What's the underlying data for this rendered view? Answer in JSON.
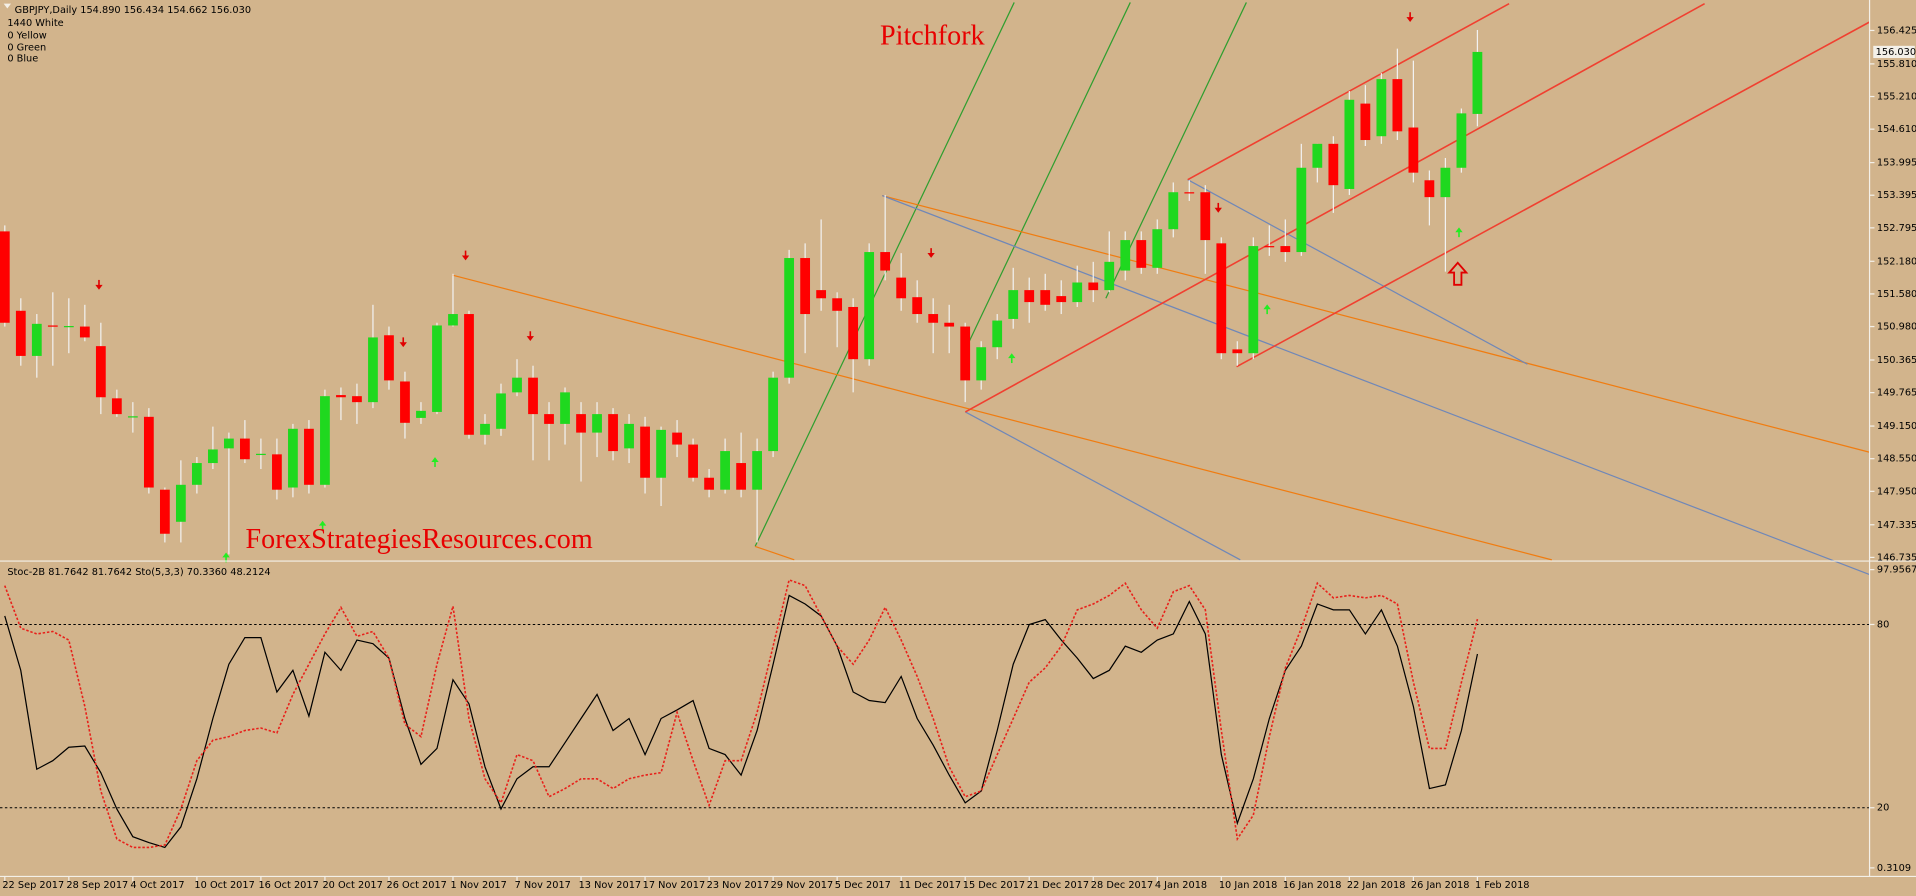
{
  "chart_data": [
    {
      "type": "candlestick",
      "title": "Pitchfork",
      "watermark": "ForexStrategiesResources.com",
      "header": "GBPJPY,Daily  154.890 156.434 154.662 156.030",
      "info_lines": [
        "1440 White",
        "0 Yellow",
        "0 Green",
        "0 Blue"
      ],
      "up_color": "#1fd81f",
      "down_color": "#ff0000",
      "wick_color": "#f2f2f2",
      "xlim": [
        -0.3,
        116.5
      ],
      "ylim": [
        146.69,
        156.985
      ],
      "yticks": [
        156.425,
        {
          "value": 155.81,
          "label": "155.810"
        },
        {
          "value": 155.21,
          "label": "155.210"
        },
        {
          "value": 154.61,
          "label": "154.610"
        },
        153.995,
        153.395,
        152.795,
        {
          "value": 152.18,
          "label": "152.180"
        },
        {
          "value": 151.58,
          "label": "151.580"
        },
        {
          "value": 150.98,
          "label": "150.980"
        },
        150.365,
        149.765,
        {
          "value": 149.15,
          "label": "149.150"
        },
        {
          "value": 148.55,
          "label": "148.550"
        },
        {
          "value": 147.95,
          "label": "147.950"
        },
        147.335,
        146.735
      ],
      "last_price": {
        "value": 156.03,
        "label": "156.030"
      },
      "open": [
        152.73,
        151.27,
        150.44,
        151.0,
        150.98,
        150.98,
        150.62,
        149.66,
        149.32,
        149.32,
        147.98,
        147.39,
        148.07,
        148.47,
        148.74,
        148.92,
        148.63,
        148.63,
        148.02,
        149.1,
        148.07,
        149.72,
        149.7,
        149.59,
        150.82,
        149.97,
        149.3,
        149.41,
        151.0,
        151.21,
        148.99,
        149.1,
        149.77,
        150.04,
        149.37,
        149.19,
        149.37,
        149.03,
        149.37,
        148.74,
        149.14,
        148.2,
        149.03,
        148.81,
        148.2,
        147.98,
        148.47,
        147.98,
        148.69,
        150.04,
        152.24,
        151.65,
        151.5,
        151.34,
        150.38,
        152.35,
        151.88,
        151.52,
        151.21,
        151.05,
        150.98,
        149.99,
        150.6,
        151.12,
        151.65,
        151.65,
        151.54,
        151.43,
        151.79,
        151.65,
        152.01,
        152.57,
        152.06,
        152.77,
        153.45,
        153.45,
        152.51,
        150.56,
        150.49,
        152.46,
        152.46,
        152.35,
        153.9,
        154.34,
        153.51,
        155.08,
        154.48,
        155.53,
        154.64,
        153.67,
        153.36,
        153.9,
        154.89
      ],
      "high": [
        152.84,
        151.5,
        151.21,
        151.61,
        151.5,
        151.38,
        151.05,
        149.82,
        149.59,
        149.48,
        148.02,
        148.52,
        148.58,
        149.14,
        149.03,
        149.26,
        148.92,
        148.92,
        149.19,
        149.26,
        149.82,
        149.86,
        149.93,
        151.38,
        150.98,
        150.15,
        149.59,
        151.05,
        151.95,
        151.27,
        149.37,
        149.93,
        150.38,
        150.26,
        149.59,
        149.86,
        149.59,
        149.59,
        149.48,
        149.37,
        149.32,
        149.14,
        149.26,
        148.92,
        148.36,
        148.92,
        149.03,
        148.92,
        150.15,
        152.39,
        152.51,
        152.95,
        151.61,
        151.5,
        152.51,
        153.4,
        152.33,
        151.83,
        151.5,
        151.38,
        151.05,
        150.71,
        151.21,
        152.06,
        151.88,
        151.95,
        151.83,
        152.1,
        152.17,
        152.73,
        152.73,
        152.73,
        152.95,
        153.63,
        153.67,
        153.58,
        152.62,
        150.71,
        152.62,
        152.84,
        152.95,
        154.34,
        154.34,
        154.48,
        155.31,
        155.42,
        155.64,
        156.09,
        155.87,
        153.85,
        154.08,
        154.99,
        156.434
      ],
      "low": [
        150.98,
        150.26,
        150.04,
        150.26,
        150.49,
        150.71,
        149.37,
        149.32,
        149.03,
        147.91,
        147.01,
        147.01,
        147.91,
        148.36,
        146.79,
        148.47,
        148.36,
        147.8,
        147.84,
        147.91,
        148.02,
        149.26,
        149.19,
        149.48,
        149.82,
        148.92,
        149.19,
        149.37,
        150.98,
        148.92,
        148.81,
        148.97,
        149.7,
        148.52,
        148.52,
        148.81,
        148.13,
        148.58,
        148.52,
        148.47,
        147.91,
        147.68,
        148.58,
        148.13,
        147.84,
        147.91,
        147.84,
        147.01,
        148.58,
        149.93,
        150.49,
        151.27,
        150.6,
        149.77,
        150.26,
        151.83,
        151.27,
        151.05,
        150.49,
        150.49,
        149.59,
        149.82,
        150.38,
        150.94,
        151.05,
        151.27,
        151.21,
        151.34,
        151.43,
        151.61,
        151.83,
        151.95,
        151.95,
        152.62,
        153.29,
        151.95,
        150.38,
        150.26,
        150.38,
        152.28,
        152.17,
        152.28,
        153.63,
        153.07,
        153.4,
        154.3,
        154.34,
        154.41,
        153.63,
        152.84,
        151.99,
        153.81,
        154.662
      ],
      "close": [
        151.05,
        150.44,
        151.03,
        150.99,
        150.99,
        150.78,
        149.68,
        149.37,
        149.33,
        148.02,
        147.17,
        148.07,
        148.47,
        148.72,
        148.92,
        148.54,
        148.64,
        147.98,
        149.1,
        148.07,
        149.7,
        149.68,
        149.59,
        150.78,
        149.99,
        149.21,
        149.43,
        151.0,
        151.21,
        148.99,
        149.19,
        149.75,
        150.04,
        149.37,
        149.19,
        149.77,
        149.03,
        149.37,
        148.69,
        149.19,
        148.2,
        149.08,
        148.81,
        148.2,
        147.98,
        148.69,
        147.98,
        148.69,
        150.04,
        152.24,
        151.21,
        151.5,
        151.27,
        150.38,
        152.35,
        152.01,
        151.5,
        151.21,
        151.05,
        150.98,
        149.99,
        150.6,
        151.09,
        151.65,
        151.43,
        151.38,
        151.43,
        151.79,
        151.65,
        152.17,
        152.57,
        152.06,
        152.77,
        153.45,
        153.44,
        152.57,
        150.49,
        150.49,
        152.46,
        152.44,
        152.35,
        153.9,
        154.34,
        153.58,
        155.15,
        154.41,
        155.53,
        154.57,
        153.81,
        153.36,
        153.9,
        154.9,
        156.03
      ]
    },
    {
      "type": "line",
      "header": "Stoc-2B 81.7642 81.7642  Sto(5,3,3) 70.3360 48.2124",
      "xlim": [
        -0.3,
        116.5
      ],
      "ylim": [
        0.3109,
        97.9567
      ],
      "yticks": [
        97.9567,
        80,
        20,
        0.3109
      ],
      "grid": true,
      "xticks": [
        {
          "value": 0,
          "label": "22 Sep 2017"
        },
        {
          "value": 4,
          "label": "28 Sep 2017"
        },
        {
          "value": 8,
          "label": "4 Oct 2017"
        },
        {
          "value": 12,
          "label": "10 Oct 2017"
        },
        {
          "value": 16,
          "label": "16 Oct 2017"
        },
        {
          "value": 20,
          "label": "20 Oct 2017"
        },
        {
          "value": 24,
          "label": "26 Oct 2017"
        },
        {
          "value": 28,
          "label": "1 Nov 2017"
        },
        {
          "value": 32,
          "label": "7 Nov 2017"
        },
        {
          "value": 36,
          "label": "13 Nov 2017"
        },
        {
          "value": 40,
          "label": "17 Nov 2017"
        },
        {
          "value": 44,
          "label": "23 Nov 2017"
        },
        {
          "value": 48,
          "label": "29 Nov 2017"
        },
        {
          "value": 52,
          "label": "5 Dec 2017"
        },
        {
          "value": 56,
          "label": "11 Dec 2017"
        },
        {
          "value": 60,
          "label": "15 Dec 2017"
        },
        {
          "value": 64,
          "label": "21 Dec 2017"
        },
        {
          "value": 68,
          "label": "28 Dec 2017"
        },
        {
          "value": 72,
          "label": "4 Jan 2018"
        },
        {
          "value": 76,
          "label": "10 Jan 2018"
        },
        {
          "value": 80,
          "label": "16 Jan 2018"
        },
        {
          "value": 84,
          "label": "22 Jan 2018"
        },
        {
          "value": 88,
          "label": "26 Jan 2018"
        },
        {
          "value": 92,
          "label": "1 Feb 2018"
        }
      ],
      "series": [
        {
          "color": "#000000",
          "style": "solid",
          "values": [
            82.8,
            65.0,
            32.6,
            35.4,
            39.8,
            40.2,
            31.5,
            19.6,
            10.5,
            8.6,
            7.0,
            13.7,
            29.5,
            49.2,
            67.0,
            75.7,
            75.7,
            57.9,
            65.0,
            50.0,
            70.9,
            65.0,
            74.9,
            73.7,
            69.0,
            49.2,
            34.2,
            39.4,
            61.9,
            54.0,
            33.4,
            19.6,
            29.5,
            33.4,
            33.4,
            41.3,
            49.2,
            57.1,
            45.3,
            49.2,
            37.4,
            49.2,
            52.0,
            55.1,
            39.4,
            37.4,
            30.7,
            45.3,
            67.0,
            89.5,
            86.7,
            82.8,
            72.9,
            57.9,
            55.1,
            54.4,
            63.0,
            49.2,
            40.5,
            30.7,
            21.6,
            25.5,
            45.3,
            67.0,
            80.0,
            81.6,
            74.9,
            69.0,
            62.3,
            65.0,
            72.9,
            70.9,
            74.9,
            76.9,
            87.5,
            76.9,
            37.4,
            14.9,
            29.5,
            49.2,
            65.0,
            72.9,
            86.7,
            84.8,
            84.8,
            76.9,
            84.8,
            72.9,
            53.1,
            26.3,
            27.5,
            45.3,
            70.336
          ]
        },
        {
          "color": "#e8201a",
          "style": "dotted",
          "values": [
            92.7,
            78.8,
            76.9,
            77.7,
            74.9,
            53.2,
            25.5,
            9.8,
            7.0,
            7.0,
            7.8,
            19.6,
            35.4,
            42.1,
            43.3,
            45.3,
            46.1,
            44.5,
            57.1,
            67.0,
            76.9,
            85.6,
            76.1,
            77.7,
            69.0,
            47.3,
            43.3,
            67.0,
            86.0,
            49.2,
            29.5,
            21.6,
            37.4,
            35.4,
            23.6,
            26.3,
            29.5,
            29.5,
            26.3,
            29.5,
            30.7,
            31.5,
            51.2,
            35.4,
            20.8,
            35.4,
            35.4,
            51.2,
            72.9,
            94.6,
            92.7,
            82.8,
            72.9,
            67.0,
            74.9,
            85.6,
            74.9,
            63.0,
            49.2,
            33.4,
            23.6,
            25.5,
            37.4,
            49.2,
            61.1,
            65.8,
            72.9,
            84.8,
            86.7,
            89.5,
            93.5,
            84.8,
            78.8,
            90.7,
            92.7,
            84.8,
            45.3,
            9.8,
            17.6,
            43.3,
            65.8,
            78.8,
            93.5,
            88.7,
            89.5,
            88.7,
            89.5,
            86.7,
            61.1,
            39.4,
            39.4,
            61.1,
            81.7642
          ]
        }
      ]
    }
  ]
}
